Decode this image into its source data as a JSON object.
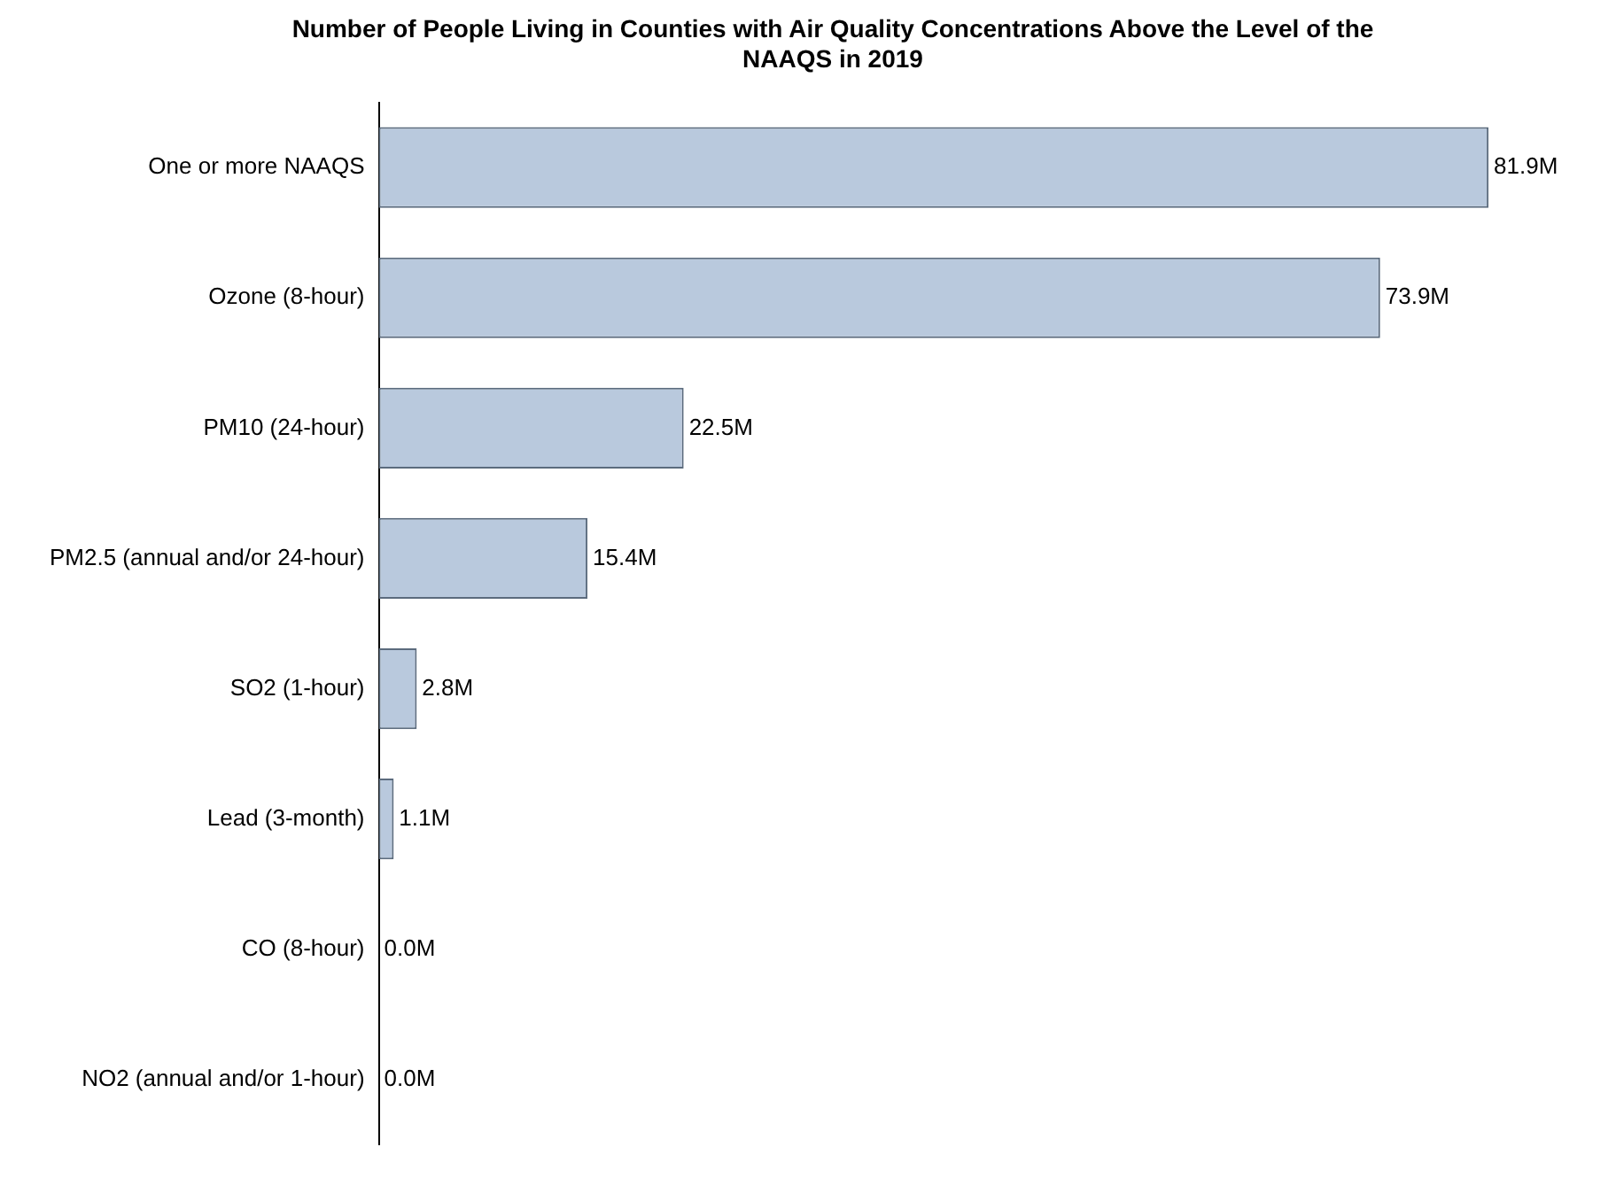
{
  "chart_data": {
    "type": "bar",
    "orientation": "horizontal",
    "title": "Number of People Living in Counties with Air Quality Concentrations Above the Level of the NAAQS in 2019",
    "categories": [
      "One or more NAAQS",
      "Ozone (8-hour)",
      "PM10 (24-hour)",
      "PM2.5 (annual and/or 24-hour)",
      "SO2 (1-hour)",
      "Lead (3-month)",
      "CO (8-hour)",
      "NO2 (annual and/or 1-hour)"
    ],
    "values": [
      81.9,
      73.9,
      22.5,
      15.4,
      2.8,
      1.1,
      0.0,
      0.0
    ],
    "value_labels": [
      "81.9M",
      "73.9M",
      "22.5M",
      "15.4M",
      "2.8M",
      "1.1M",
      "0.0M",
      "0.0M"
    ],
    "color": "#b9c9dd",
    "grid": false,
    "legend": false,
    "tick_labels": "y"
  }
}
